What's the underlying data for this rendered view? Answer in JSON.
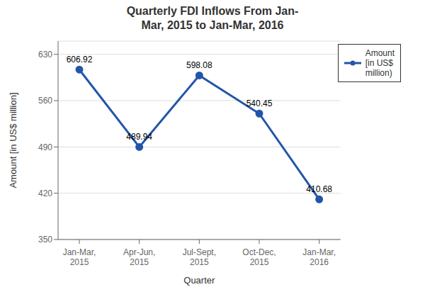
{
  "chart_data": {
    "type": "line",
    "title": "Quarterly FDI Inflows From Jan-\nMar, 2015 to Jan-Mar, 2016",
    "xlabel": "Quarter",
    "ylabel": "Amount [in US$ million]",
    "categories": [
      "Jan-Mar,\n2015",
      "Apr-Jun,\n2015",
      "Jul-Sept,\n2015",
      "Oct-Dec,\n2015",
      "Jan-Mar,\n2016"
    ],
    "series": [
      {
        "name": "Amount\n[in US$\nmillion)",
        "color": "#2255aa",
        "marker": "circle",
        "values": [
          606.92,
          489.94,
          598.08,
          540.45,
          410.68
        ]
      }
    ],
    "ylim": [
      350,
      650
    ],
    "yticks": [
      350,
      420,
      490,
      560,
      630
    ],
    "grid": true,
    "legend": "upper right",
    "data_labels": true
  }
}
